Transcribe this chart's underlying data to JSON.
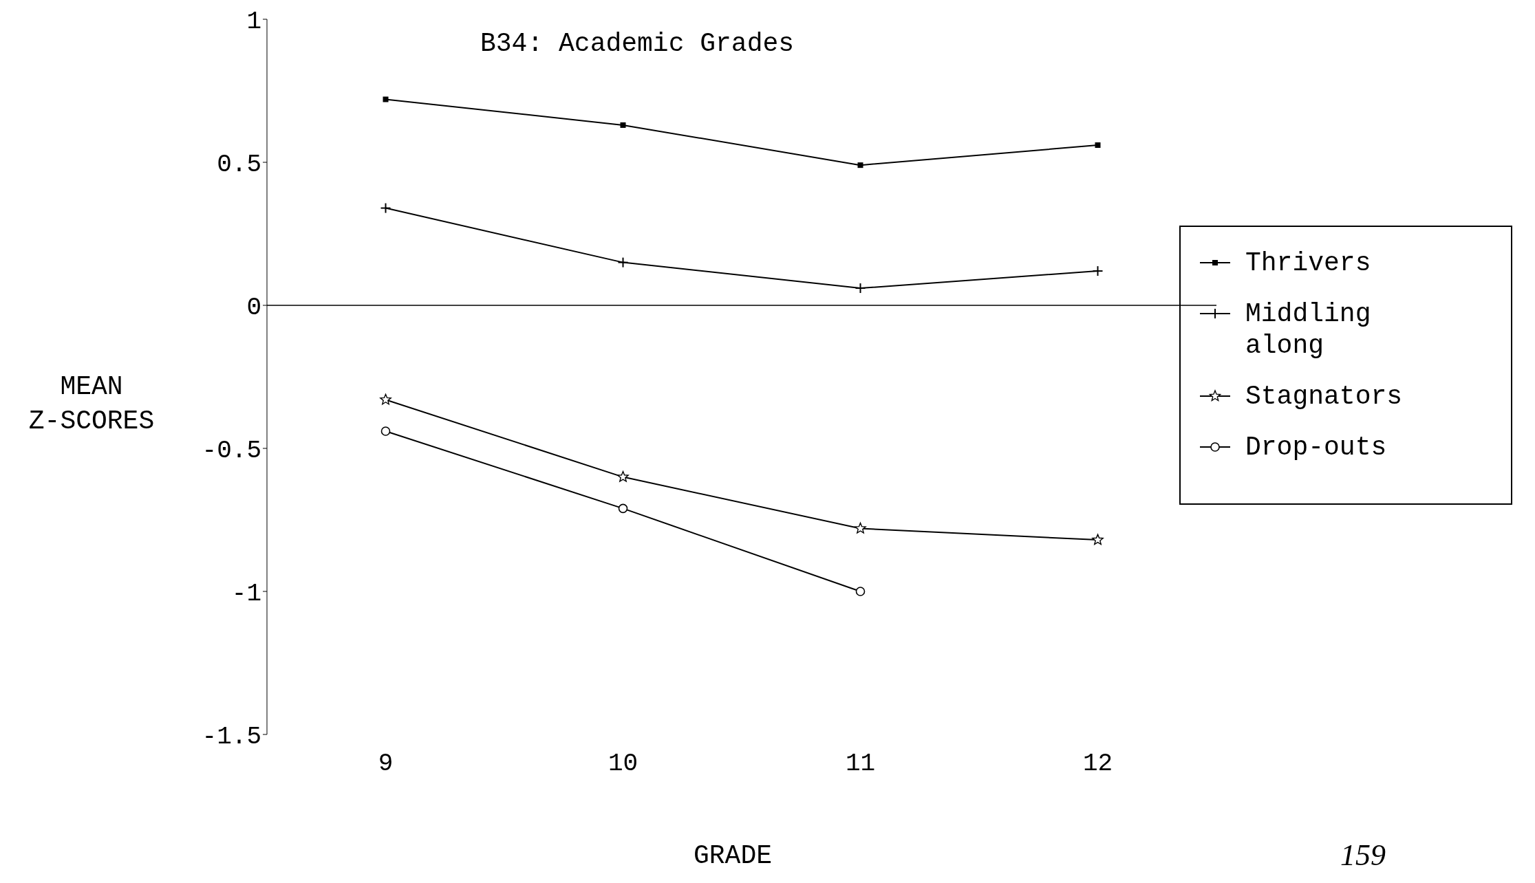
{
  "chart_data": {
    "type": "line",
    "title": "B34: Academic Grades",
    "xlabel": "GRADE",
    "ylabel": "MEAN Z-SCORES",
    "x": [
      9,
      10,
      11,
      12
    ],
    "series": [
      {
        "name": "Thrivers",
        "color": "#000000",
        "marker": "square",
        "values": [
          0.72,
          0.63,
          0.49,
          0.56
        ]
      },
      {
        "name": "Middling along",
        "color": "#000000",
        "marker": "cross",
        "values": [
          0.34,
          0.15,
          0.06,
          0.12
        ]
      },
      {
        "name": "Stagnators",
        "color": "#000000",
        "marker": "star",
        "values": [
          -0.33,
          -0.6,
          -0.78,
          -0.82
        ]
      },
      {
        "name": "Drop-outs",
        "color": "#000000",
        "marker": "circle",
        "values": [
          -0.44,
          -0.71,
          -1.0,
          null
        ]
      }
    ],
    "xlim": [
      8.5,
      12.5
    ],
    "xticks": [
      9,
      10,
      11,
      12
    ],
    "ylim": [
      -1.5,
      1
    ],
    "yticks": [
      -1.5,
      -1,
      -0.5,
      0,
      0.5,
      1
    ],
    "ref_lines": [
      {
        "axis": "y",
        "value": 0
      }
    ],
    "legend": "right",
    "line_style": "solid",
    "annotations": [
      "159"
    ]
  }
}
